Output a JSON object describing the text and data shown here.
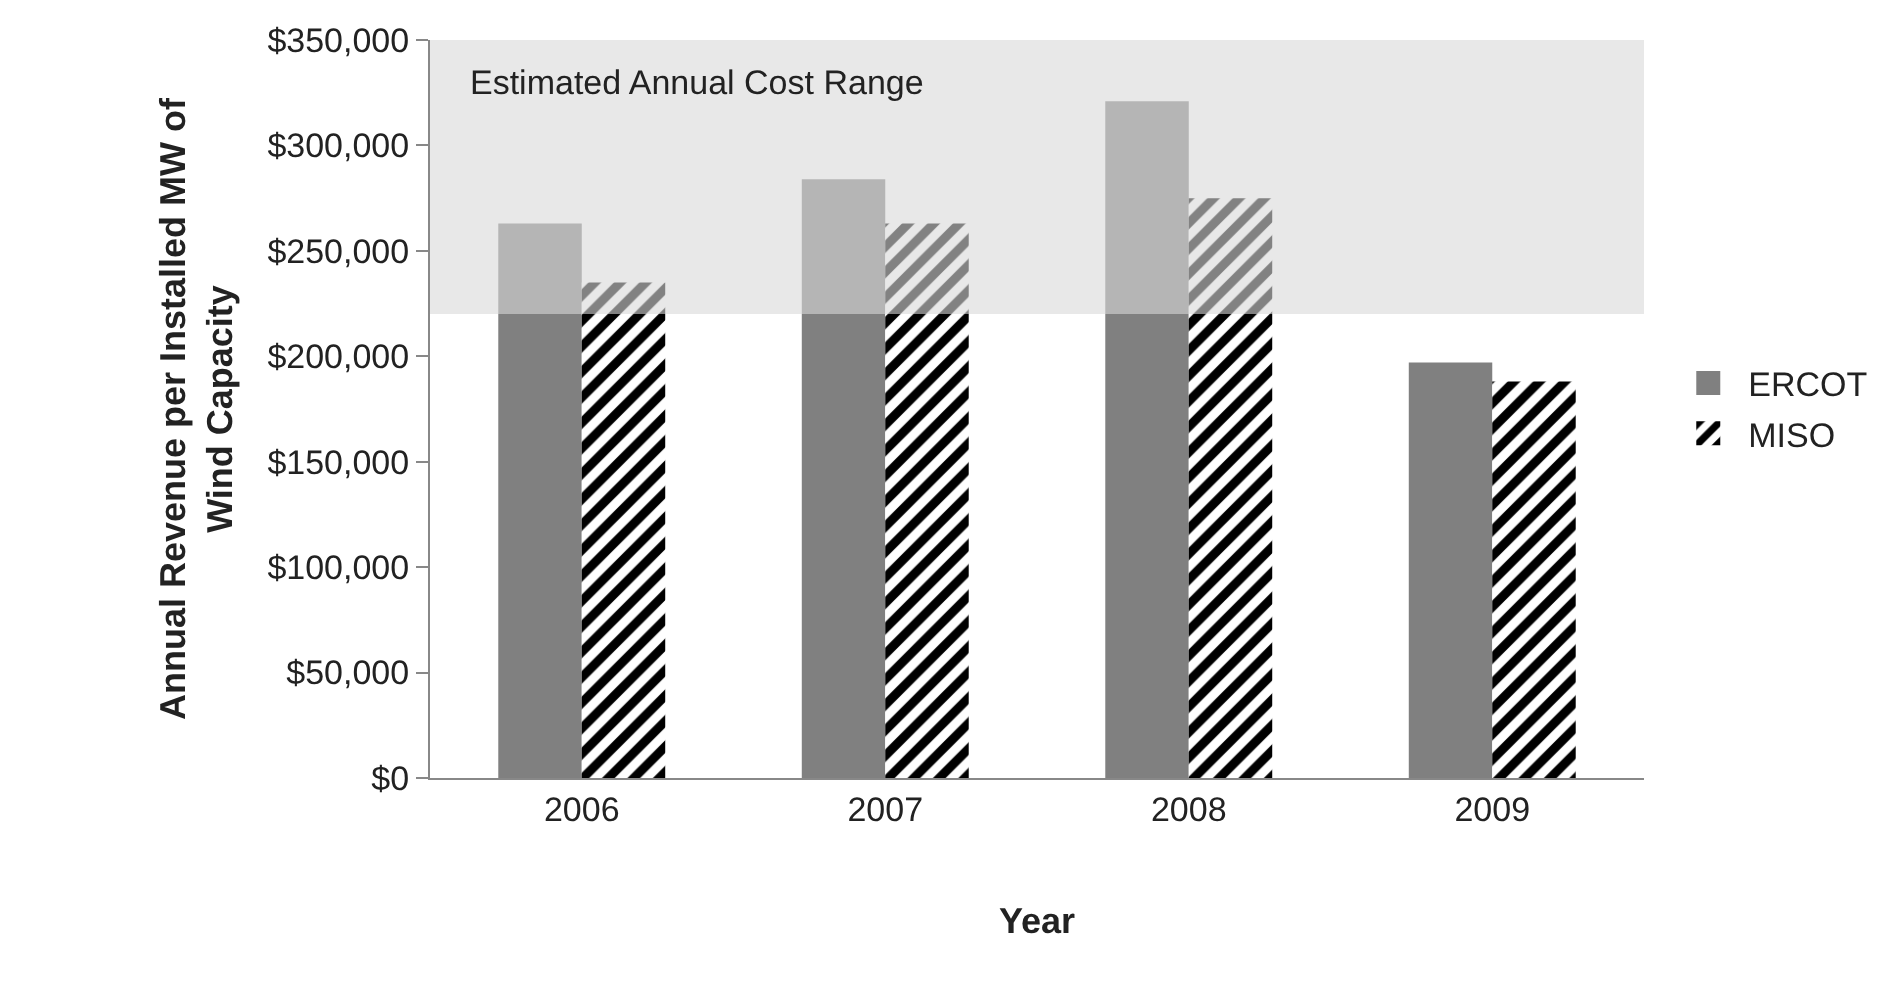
{
  "chart_data": {
    "type": "bar",
    "xlabel": "Year",
    "ylabel": "Annual Revenue per Installed MW of Wind Capacity",
    "categories": [
      "2006",
      "2007",
      "2008",
      "2009"
    ],
    "series": [
      {
        "name": "ERCOT",
        "color": "#808080",
        "values": [
          263000,
          284000,
          321000,
          197000
        ]
      },
      {
        "name": "MISO",
        "color": "#000000",
        "values": [
          235000,
          263000,
          275000,
          188000
        ]
      }
    ],
    "ylim": [
      0,
      350000
    ],
    "yticks": [
      {
        "value": 0,
        "label": "$0"
      },
      {
        "value": 50000,
        "label": "$50,000"
      },
      {
        "value": 100000,
        "label": "$100,000"
      },
      {
        "value": 150000,
        "label": "$150,000"
      },
      {
        "value": 200000,
        "label": "$200,000"
      },
      {
        "value": 250000,
        "label": "$250,000"
      },
      {
        "value": 300000,
        "label": "$300,000"
      },
      {
        "value": 350000,
        "label": "$350,000"
      }
    ],
    "bands": [
      {
        "axis": "y",
        "from": 220000,
        "to": 350000,
        "label": "Estimated Annual Cost Range",
        "color": "#d9d9d9"
      }
    ],
    "grid": false,
    "legend": "right"
  }
}
